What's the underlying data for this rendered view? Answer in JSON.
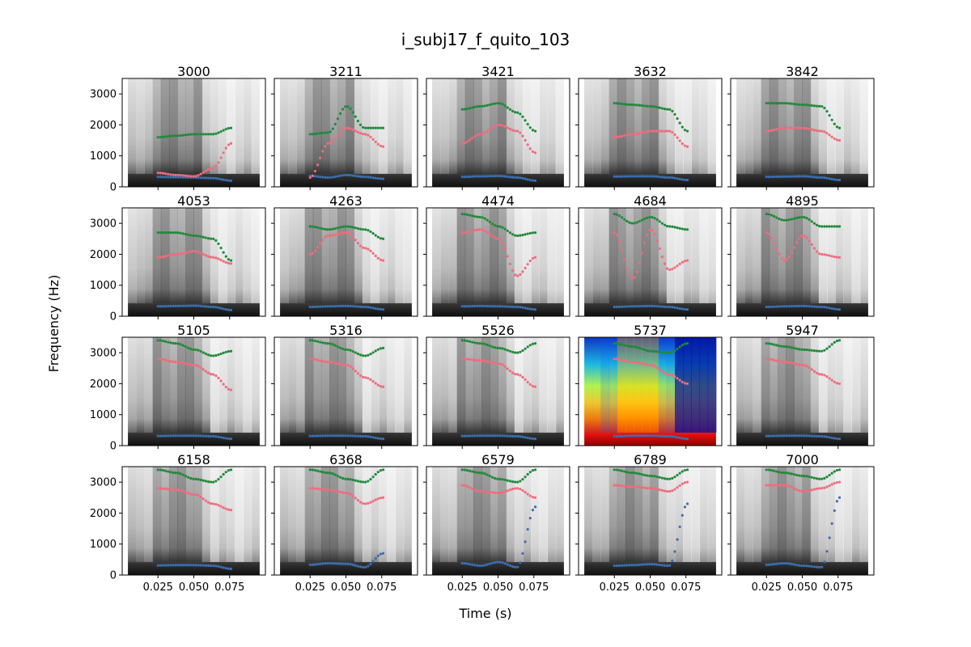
{
  "figure": {
    "title": "i_subj17_f_quito_103",
    "xlabel": "Time (s)",
    "ylabel": "Frequency (Hz)"
  },
  "colors": {
    "f1": "#3a6fb0",
    "f2": "#f06c7c",
    "f3": "#1f8a3a",
    "frame": "#000000"
  },
  "chart_data": {
    "type": "scatter",
    "grid": false,
    "xlim": [
      0.0,
      0.1
    ],
    "ylim": [
      0,
      3500
    ],
    "xticks": [
      0.025,
      0.05,
      0.075
    ],
    "xtick_labels": [
      "0.025",
      "0.050",
      "0.075"
    ],
    "yticks": [
      0,
      1000,
      2000,
      3000
    ],
    "ytick_labels": [
      "0",
      "1000",
      "2000",
      "3000"
    ],
    "layout": "4 rows x 5 columns, shared axes",
    "panels": [
      {
        "title": "3000",
        "colormap": "gray",
        "f1": [
          320,
          310,
          300,
          280,
          200
        ],
        "f2": [
          450,
          380,
          340,
          600,
          1400
        ],
        "f3": [
          1600,
          1650,
          1700,
          1700,
          1900
        ]
      },
      {
        "title": "3211",
        "colormap": "gray",
        "f1": [
          350,
          300,
          380,
          320,
          260
        ],
        "f2": [
          300,
          1400,
          1900,
          1700,
          1300
        ],
        "f3": [
          1700,
          1750,
          2600,
          1900,
          1900
        ]
      },
      {
        "title": "3421",
        "colormap": "gray",
        "f1": [
          320,
          340,
          350,
          300,
          200
        ],
        "f2": [
          1400,
          1700,
          2000,
          1800,
          1100
        ],
        "f3": [
          2500,
          2600,
          2700,
          2400,
          1800
        ]
      },
      {
        "title": "3632",
        "colormap": "gray",
        "f1": [
          330,
          340,
          340,
          300,
          220
        ],
        "f2": [
          1600,
          1700,
          1800,
          1800,
          1300
        ],
        "f3": [
          2700,
          2650,
          2600,
          2500,
          1800
        ]
      },
      {
        "title": "3842",
        "colormap": "gray",
        "f1": [
          320,
          330,
          340,
          300,
          220
        ],
        "f2": [
          1800,
          1900,
          1900,
          1800,
          1500
        ],
        "f3": [
          2700,
          2700,
          2650,
          2600,
          1900
        ]
      },
      {
        "title": "4053",
        "colormap": "gray",
        "f1": [
          320,
          330,
          340,
          300,
          200
        ],
        "f2": [
          1900,
          2000,
          2100,
          1900,
          1700
        ],
        "f3": [
          2700,
          2700,
          2600,
          2500,
          1800
        ]
      },
      {
        "title": "4263",
        "colormap": "gray",
        "f1": [
          300,
          320,
          330,
          300,
          220
        ],
        "f2": [
          2000,
          2600,
          2700,
          2200,
          1800
        ],
        "f3": [
          2900,
          2800,
          2900,
          2800,
          2500
        ]
      },
      {
        "title": "4474",
        "colormap": "gray",
        "f1": [
          320,
          330,
          320,
          300,
          220
        ],
        "f2": [
          2700,
          2800,
          2500,
          1300,
          1900
        ],
        "f3": [
          3300,
          3200,
          2900,
          2600,
          2700
        ]
      },
      {
        "title": "4684",
        "colormap": "gray",
        "f1": [
          300,
          320,
          330,
          300,
          220
        ],
        "f2": [
          2700,
          1200,
          2800,
          1500,
          1800
        ],
        "f3": [
          3300,
          3000,
          3200,
          2900,
          2800
        ]
      },
      {
        "title": "4895",
        "colormap": "gray",
        "f1": [
          300,
          320,
          330,
          300,
          220
        ],
        "f2": [
          2700,
          1800,
          2600,
          2000,
          1900
        ],
        "f3": [
          3300,
          3100,
          3200,
          2900,
          2900
        ]
      },
      {
        "title": "5105",
        "colormap": "gray",
        "f1": [
          310,
          320,
          320,
          300,
          220
        ],
        "f2": [
          2800,
          2700,
          2600,
          2300,
          1800
        ],
        "f3": [
          3400,
          3300,
          3100,
          2900,
          3050
        ]
      },
      {
        "title": "5316",
        "colormap": "gray",
        "f1": [
          310,
          320,
          320,
          300,
          220
        ],
        "f2": [
          2800,
          2700,
          2600,
          2200,
          1900
        ],
        "f3": [
          3400,
          3300,
          3100,
          2900,
          3150
        ]
      },
      {
        "title": "5526",
        "colormap": "gray",
        "f1": [
          310,
          320,
          320,
          300,
          220
        ],
        "f2": [
          2800,
          2750,
          2650,
          2300,
          1900
        ],
        "f3": [
          3400,
          3300,
          3150,
          3000,
          3300
        ]
      },
      {
        "title": "5737",
        "colormap": "jet",
        "f1": [
          300,
          320,
          320,
          300,
          220
        ],
        "f2": [
          2800,
          2700,
          2600,
          2300,
          2000
        ],
        "f3": [
          3300,
          3200,
          3050,
          3000,
          3300
        ]
      },
      {
        "title": "5947",
        "colormap": "gray",
        "f1": [
          310,
          320,
          320,
          300,
          220
        ],
        "f2": [
          2800,
          2700,
          2600,
          2300,
          2000
        ],
        "f3": [
          3300,
          3200,
          3100,
          3050,
          3400
        ]
      },
      {
        "title": "6158",
        "colormap": "gray",
        "f1": [
          310,
          320,
          320,
          300,
          200
        ],
        "f2": [
          2800,
          2750,
          2600,
          2300,
          2100
        ],
        "f3": [
          3400,
          3300,
          3100,
          3000,
          3400
        ]
      },
      {
        "title": "6368",
        "colormap": "gray",
        "f1": [
          330,
          380,
          360,
          250,
          700
        ],
        "f2": [
          2800,
          2750,
          2650,
          2300,
          2500
        ],
        "f3": [
          3400,
          3300,
          3100,
          3000,
          3400
        ]
      },
      {
        "title": "6579",
        "colormap": "gray",
        "f1": [
          380,
          300,
          420,
          250,
          2200
        ],
        "f2": [
          2900,
          2700,
          2650,
          2800,
          2500
        ],
        "f3": [
          3400,
          3300,
          3100,
          3000,
          3400
        ]
      },
      {
        "title": "6789",
        "colormap": "gray",
        "f1": [
          300,
          320,
          350,
          300,
          2300
        ],
        "f2": [
          2900,
          2850,
          2800,
          2700,
          3000
        ],
        "f3": [
          3400,
          3300,
          3200,
          3100,
          3400
        ]
      },
      {
        "title": "7000",
        "colormap": "gray",
        "f1": [
          330,
          380,
          300,
          250,
          2500
        ],
        "f2": [
          2900,
          2900,
          2700,
          2800,
          3000
        ],
        "f3": [
          3400,
          3300,
          3200,
          3100,
          3400
        ]
      }
    ]
  }
}
